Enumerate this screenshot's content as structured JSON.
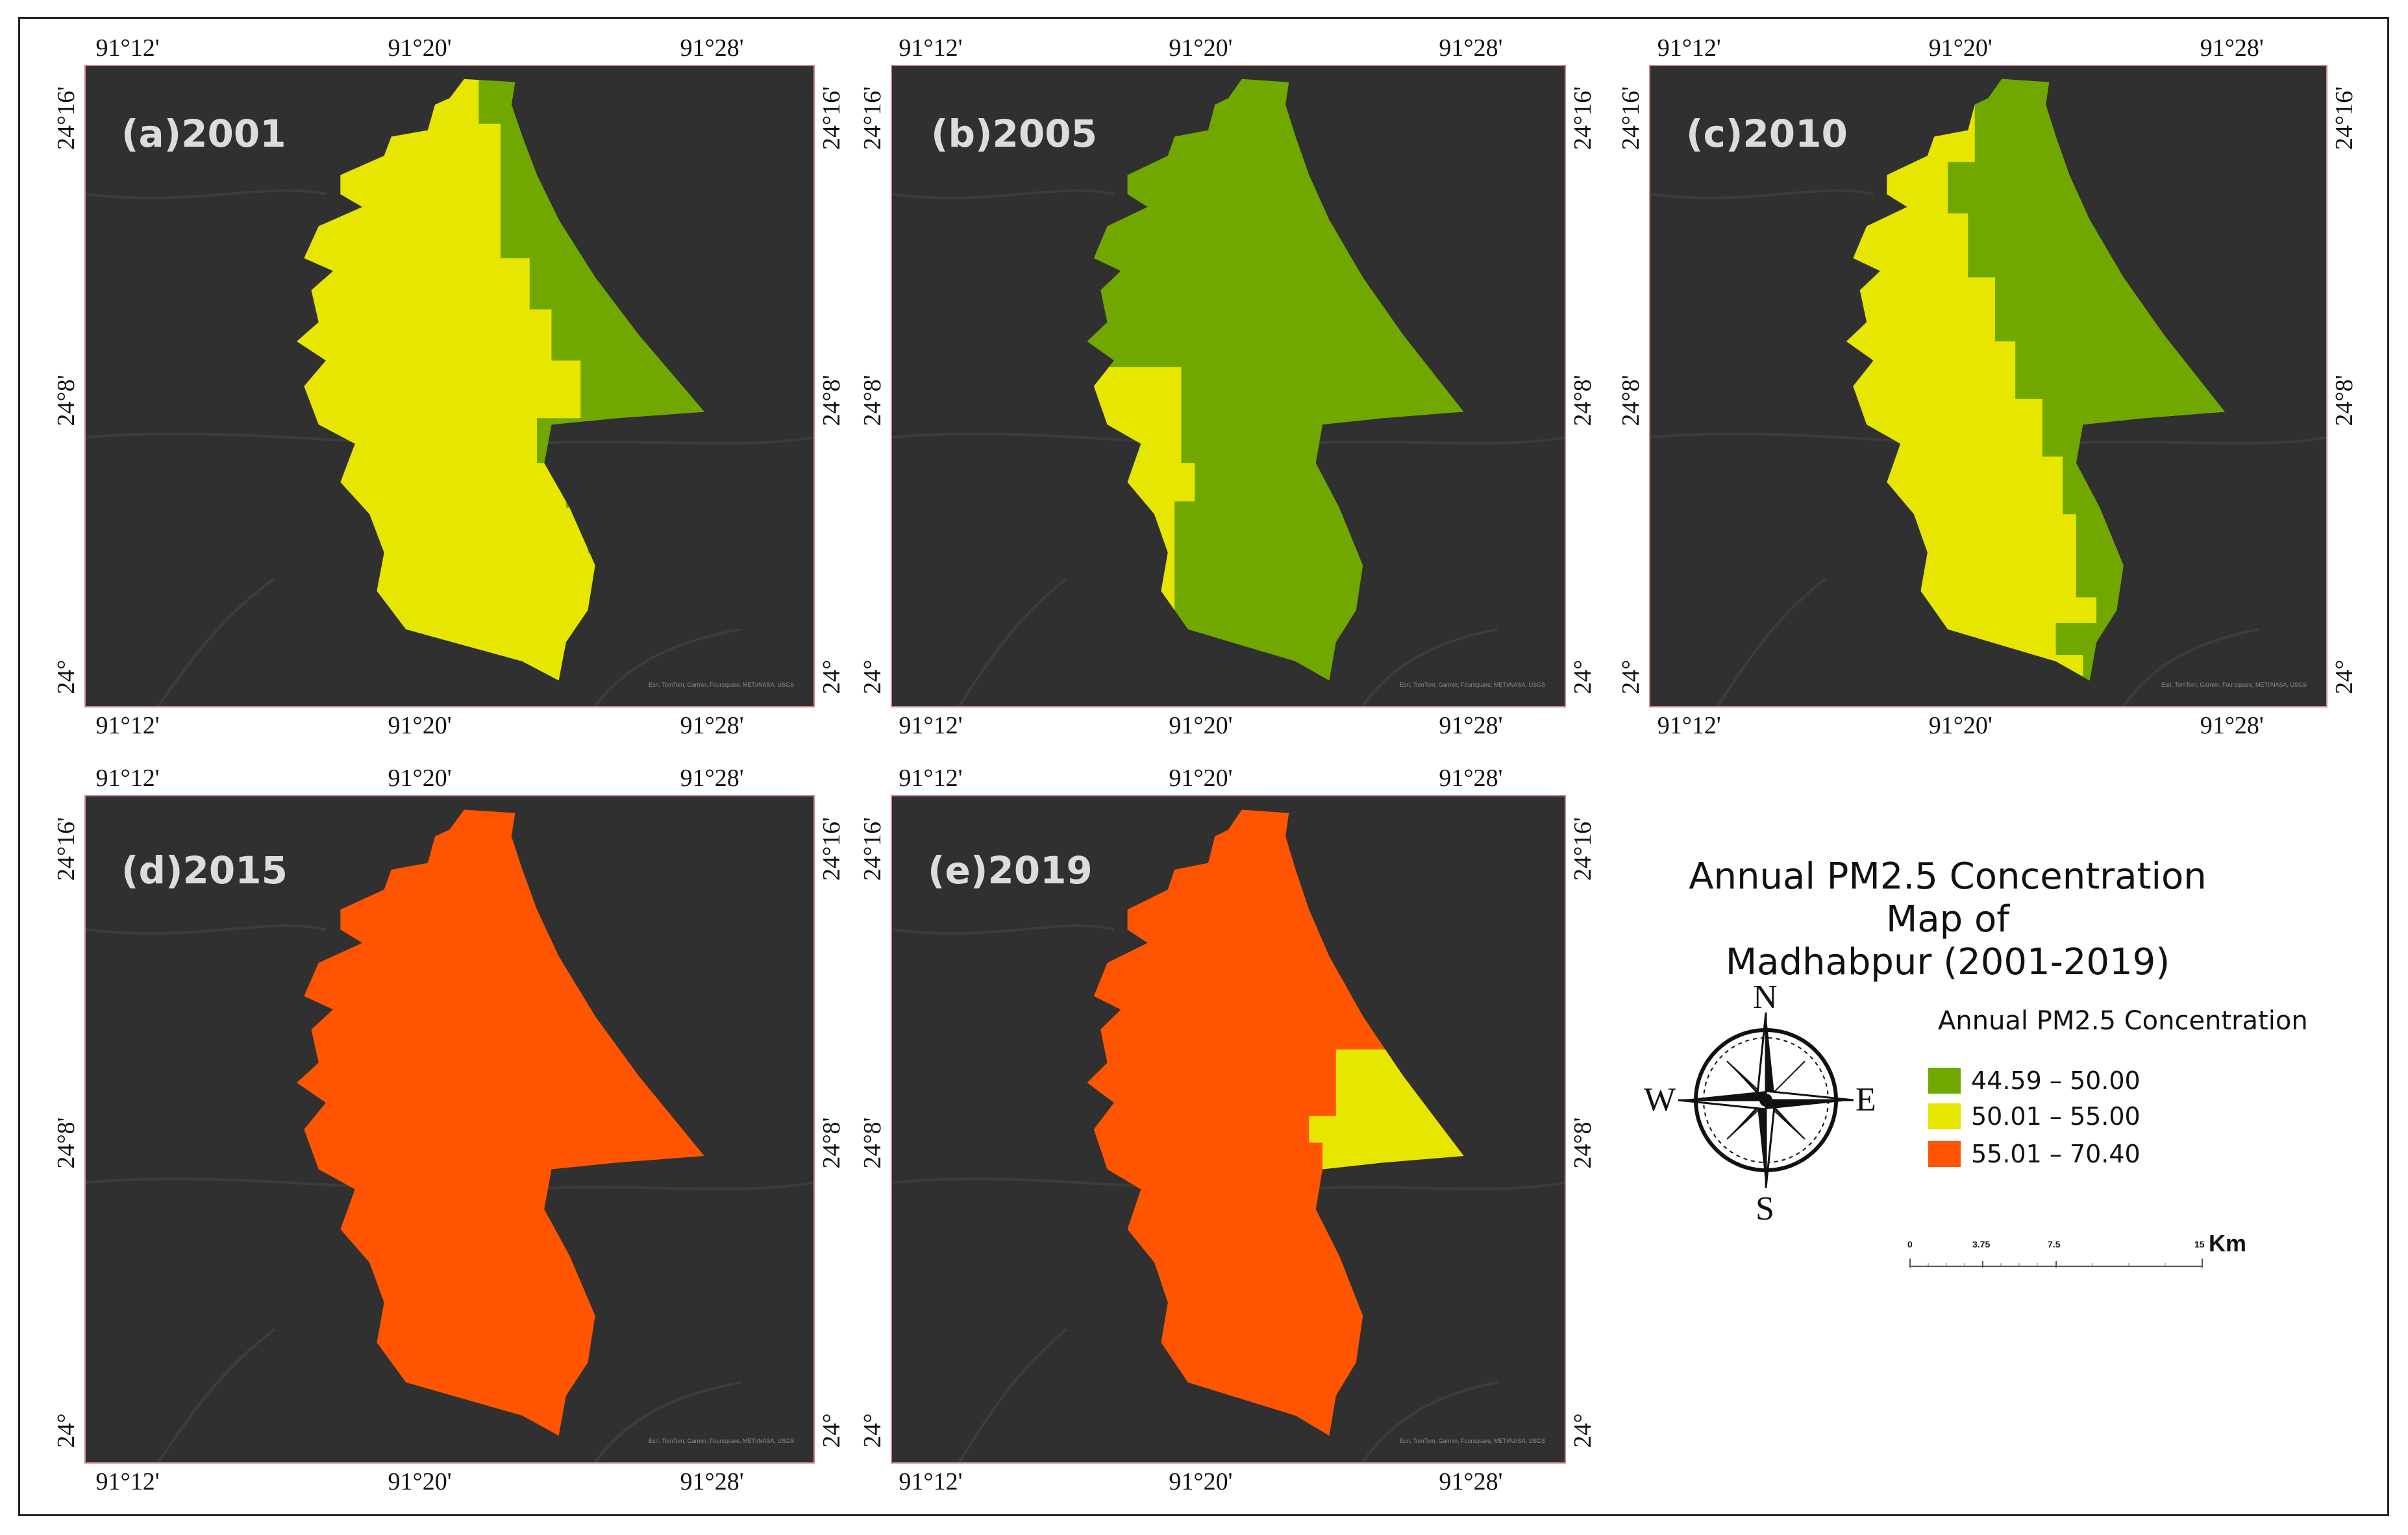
{
  "title": "Annual PM2.5 Concentration Map of Madhabpur (2001-2019)",
  "title_lines": [
    "Annual PM2.5 Concentration Map of",
    "Madhabpur (2001-2019)"
  ],
  "legend": {
    "title": "Annual PM2.5 Concentration",
    "items": [
      {
        "label": "44.59 – 50.00",
        "color": "#70a800"
      },
      {
        "label": "50.01 – 55.00",
        "color": "#e6e600"
      },
      {
        "label": "55.01 – 70.40",
        "color": "#ff5500"
      }
    ]
  },
  "compass": {
    "n": "N",
    "s": "S",
    "e": "E",
    "w": "W"
  },
  "scale": {
    "ticks": [
      "0",
      "3.75",
      "7.5",
      "15"
    ],
    "unit": "Km"
  },
  "credit": "Esri, TomTom, Garmin, Foursquare, METI/NASA, USGS",
  "axis_labels": {
    "lon": [
      "91°12'",
      "91°20'",
      "91°28'"
    ],
    "lat": [
      "24°16'",
      "24°8'",
      "24°"
    ]
  },
  "panels": [
    {
      "label": "(a)2001",
      "year": 2001
    },
    {
      "label": "(b)2005",
      "year": 2005
    },
    {
      "label": "(c)2010",
      "year": 2010
    },
    {
      "label": "(d)2015",
      "year": 2015
    },
    {
      "label": "(e)2019",
      "year": 2019
    }
  ]
}
